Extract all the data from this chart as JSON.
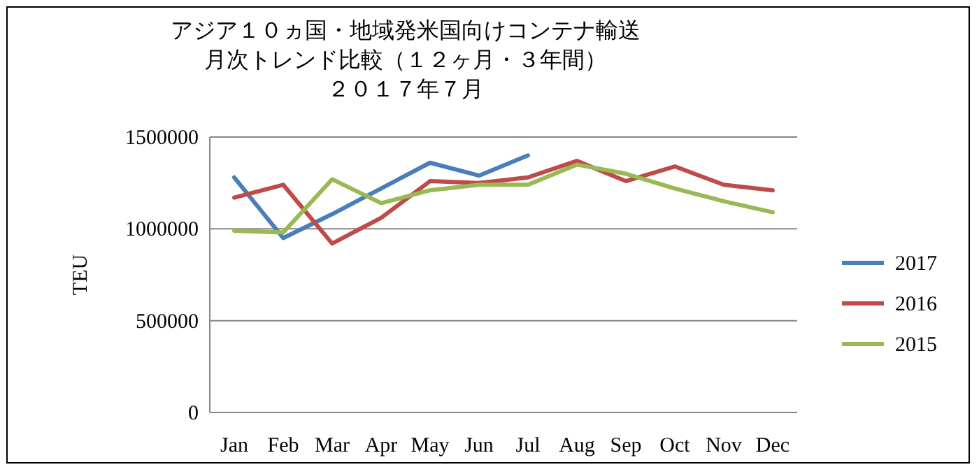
{
  "chart_data": {
    "type": "line",
    "title": "アジア１０ヵ国・地域発米国向けコンテナ輸送",
    "subtitle": "月次トレンド比較（１２ヶ月・３年間）",
    "annotations": [
      "２０１７年７月"
    ],
    "ylabel": "TEU",
    "categories": [
      "Jan",
      "Feb",
      "Mar",
      "Apr",
      "May",
      "Jun",
      "Jul",
      "Aug",
      "Sep",
      "Oct",
      "Nov",
      "Dec"
    ],
    "ylim": [
      0,
      1500000
    ],
    "yticks": [
      0,
      500000,
      1000000,
      1500000
    ],
    "grid": "y",
    "legend": "right",
    "marker": "none",
    "line_style": "solid",
    "series": [
      {
        "name": "2017",
        "color": "#4a7ebb",
        "values": [
          1280000,
          950000,
          1080000,
          1220000,
          1360000,
          1290000,
          1400000,
          null,
          null,
          null,
          null,
          null
        ]
      },
      {
        "name": "2016",
        "color": "#be4b48",
        "values": [
          1170000,
          1240000,
          920000,
          1060000,
          1260000,
          1250000,
          1280000,
          1370000,
          1260000,
          1340000,
          1240000,
          1210000
        ]
      },
      {
        "name": "2015",
        "color": "#98b954",
        "values": [
          990000,
          980000,
          1270000,
          1140000,
          1210000,
          1240000,
          1240000,
          1350000,
          1300000,
          1220000,
          1150000,
          1090000
        ]
      }
    ]
  }
}
